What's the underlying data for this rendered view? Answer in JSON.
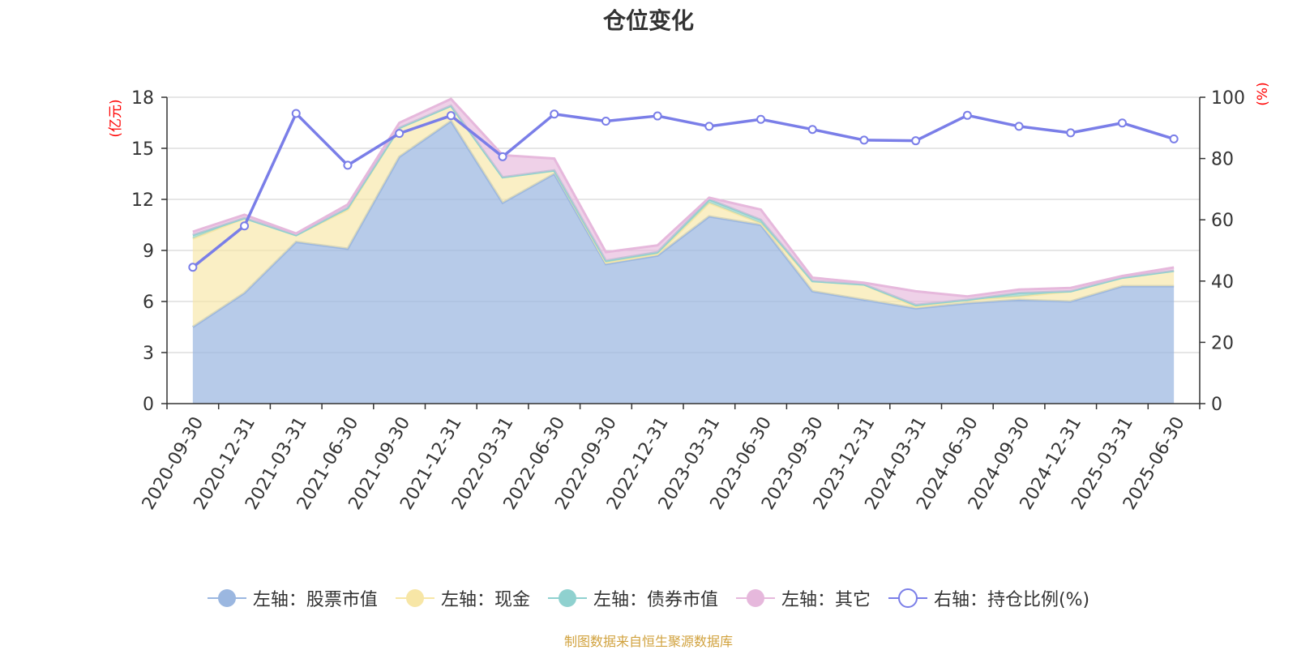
{
  "chart_data": {
    "type": "area",
    "title": "仓位变化",
    "left_axis_unit": "(亿元)",
    "right_axis_unit": "(%)",
    "ylim_left": [
      0,
      18
    ],
    "yticks_left": [
      0,
      3,
      6,
      9,
      12,
      15,
      18
    ],
    "ylim_right": [
      0,
      100
    ],
    "yticks_right": [
      0,
      20,
      40,
      60,
      80,
      100
    ],
    "grid": true,
    "legend_position": "bottom",
    "categories": [
      "2020-09-30",
      "2020-12-31",
      "2021-03-31",
      "2021-06-30",
      "2021-09-30",
      "2021-12-31",
      "2022-03-31",
      "2022-06-30",
      "2022-09-30",
      "2022-12-31",
      "2023-03-31",
      "2023-06-30",
      "2023-09-30",
      "2023-12-31",
      "2024-03-31",
      "2024-06-30",
      "2024-09-30",
      "2024-12-31",
      "2025-03-31",
      "2025-06-30"
    ],
    "series": [
      {
        "name": "左轴：股票市值",
        "axis": "left",
        "kind": "stacked-area",
        "color": "#9bb7e0",
        "values": [
          4.5,
          6.5,
          9.5,
          9.1,
          14.5,
          16.6,
          11.8,
          13.5,
          8.2,
          8.7,
          11.0,
          10.5,
          6.6,
          6.1,
          5.6,
          5.9,
          6.1,
          6.0,
          6.9,
          6.9
        ]
      },
      {
        "name": "左轴：现金",
        "axis": "left",
        "kind": "stacked-area",
        "color": "#f7e6a6",
        "values": [
          5.2,
          4.4,
          0.4,
          2.3,
          1.7,
          0.9,
          1.5,
          0.2,
          0.1,
          0.1,
          0.8,
          0.1,
          0.6,
          0.9,
          0.1,
          0.2,
          0.2,
          0.6,
          0.5,
          0.9
        ]
      },
      {
        "name": "左轴：债券市值",
        "axis": "left",
        "kind": "stacked-area",
        "color": "#8fd1cf",
        "values": [
          0.2,
          0.0,
          0.0,
          0.1,
          0.0,
          0.0,
          0.0,
          0.0,
          0.1,
          0.1,
          0.2,
          0.2,
          0.0,
          0.0,
          0.1,
          0.0,
          0.2,
          0.0,
          0.0,
          0.0
        ]
      },
      {
        "name": "左轴：其它",
        "axis": "left",
        "kind": "stacked-area",
        "color": "#e6b8dc",
        "values": [
          0.2,
          0.2,
          0.1,
          0.2,
          0.3,
          0.4,
          1.3,
          0.7,
          0.5,
          0.4,
          0.1,
          0.6,
          0.2,
          0.1,
          0.8,
          0.2,
          0.2,
          0.2,
          0.1,
          0.2
        ]
      },
      {
        "name": "右轴：持仓比例(%)",
        "axis": "right",
        "kind": "line",
        "color": "#7a7ee8",
        "values": [
          44.5,
          58.0,
          94.7,
          77.8,
          88.2,
          94.0,
          80.6,
          94.5,
          92.2,
          93.9,
          90.5,
          92.8,
          89.5,
          86.0,
          85.8,
          94.1,
          90.5,
          88.4,
          91.6,
          86.4
        ]
      }
    ]
  },
  "source_note": "制图数据来自恒生聚源数据库"
}
